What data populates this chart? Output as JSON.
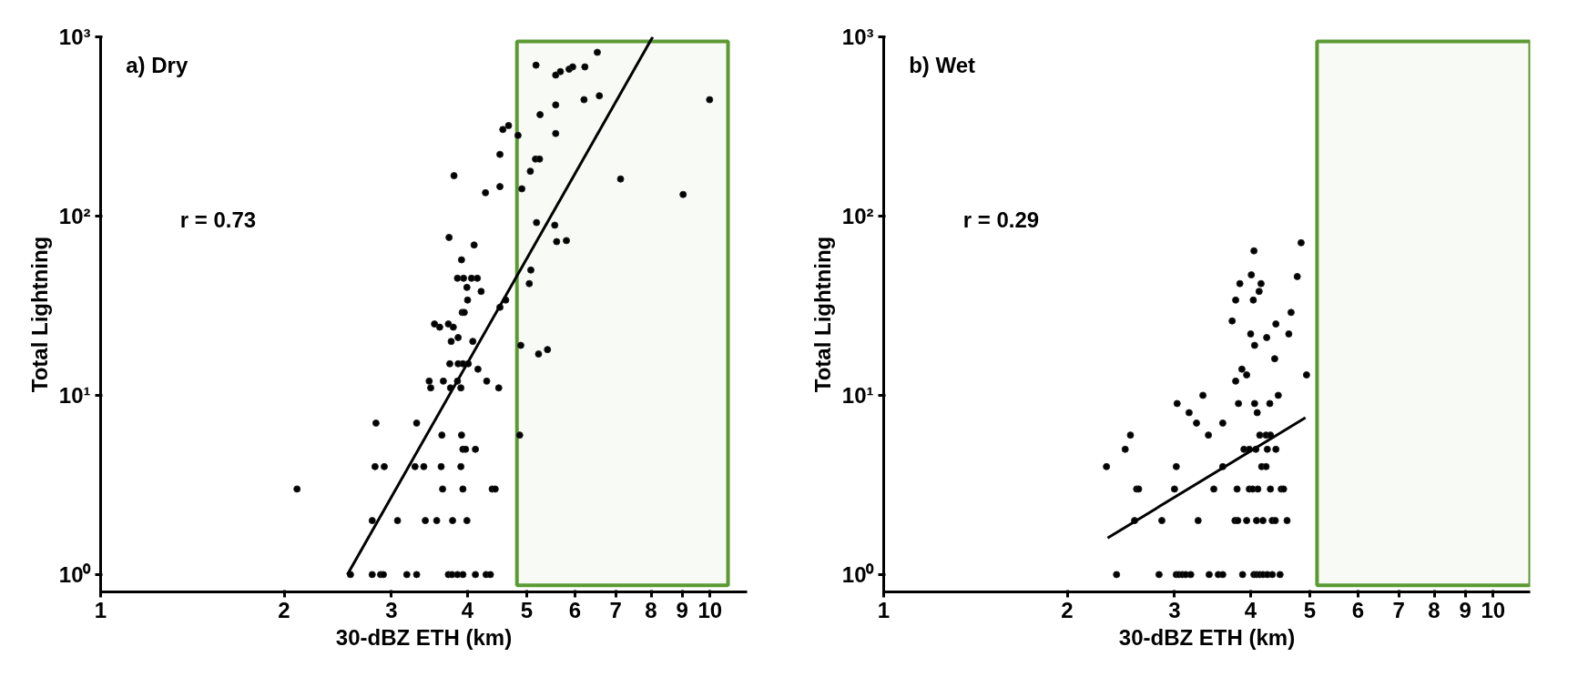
{
  "chart_data": [
    {
      "type": "scatter",
      "xlabel": "30-dBZ ETH (km)",
      "ylabel": "Total Lightning",
      "annotations": [
        "a) Dry",
        "r = 0.73"
      ],
      "marker": "circle",
      "log": "xy",
      "xlim": [
        1,
        11.5
      ],
      "ylim": [
        0.8,
        1000
      ],
      "xticks": [
        1,
        2,
        3,
        4,
        5,
        6,
        7,
        8,
        9,
        10
      ],
      "yticks": [
        {
          "value": 1,
          "label": "10⁰"
        },
        {
          "value": 10,
          "label": "10¹"
        },
        {
          "value": 100,
          "label": "10²"
        },
        {
          "value": 1000,
          "label": "10³"
        }
      ],
      "bands": [
        {
          "axis": "x",
          "from": 4.82,
          "to": 10.7,
          "label": null,
          "color": "#5b9a32"
        }
      ],
      "series": [
        {
          "type": "scatter",
          "color": "#000000",
          "x": [
            2.57,
            2.79,
            2.88,
            2.91,
            3.18,
            3.3,
            3.72,
            3.77,
            3.85,
            3.93,
            4.12,
            4.29,
            4.36,
            2.79,
            3.07,
            3.41,
            3.56,
            3.78,
            3.99,
            2.1,
            3.64,
            3.93,
            4.39,
            4.44,
            2.82,
            2.92,
            3.28,
            3.39,
            3.62,
            3.9,
            3.93,
            3.97,
            4.12,
            3.63,
            3.91,
            4.87,
            2.83,
            3.3,
            3.46,
            3.65,
            3.85,
            4.3,
            3.48,
            3.75,
            3.9,
            4.5,
            3.74,
            3.86,
            3.93,
            4.01,
            4.16,
            4.89,
            5.23,
            5.41,
            3.76,
            3.86,
            4.08,
            3.53,
            3.6,
            3.72,
            3.79,
            3.92,
            3.95,
            4.0,
            4.21,
            3.99,
            3.85,
            3.94,
            4.06,
            4.15,
            3.91,
            4.1,
            3.73,
            3.8,
            4.28,
            4.52,
            4.52,
            4.57,
            4.67,
            4.84,
            4.91,
            4.62,
            4.52,
            5.08,
            5.05,
            5.19,
            5.56,
            5.6,
            5.81,
            5.07,
            5.17,
            5.25,
            5.26,
            5.58,
            5.58,
            6.21,
            6.58,
            7.13,
            9.03,
            9.98,
            5.18,
            5.58,
            5.68,
            5.87,
            5.95,
            6.23,
            6.53
          ],
          "values": [
            1,
            1,
            1,
            1,
            1,
            1,
            1,
            1,
            1,
            1,
            1,
            1,
            1,
            2,
            2,
            2,
            2,
            2,
            2,
            3,
            3,
            3,
            3,
            3,
            4,
            4,
            4,
            4,
            4,
            4,
            5,
            5,
            5,
            6,
            6,
            6,
            7,
            7,
            12,
            12,
            12,
            12,
            11,
            11,
            11,
            11,
            15,
            15,
            15,
            15,
            14,
            19,
            17,
            18,
            20,
            21,
            20,
            25,
            24,
            25,
            24,
            29,
            29,
            34,
            38,
            40,
            45,
            45,
            45,
            45,
            57,
            69,
            76,
            168,
            135,
            146,
            221,
            304,
            320,
            282,
            142,
            34,
            31,
            50,
            42,
            92,
            89,
            72,
            73,
            178,
            208,
            208,
            368,
            289,
            417,
            446,
            469,
            161,
            132,
            446,
            695,
            612,
            640,
            660,
            680,
            680,
            820
          ]
        },
        {
          "type": "line",
          "color": "#000000",
          "marker": "none",
          "x": [
            2.54,
            8.05
          ],
          "values": [
            1,
            1000
          ]
        }
      ]
    },
    {
      "type": "scatter",
      "xlabel": "30-dBZ ETH (km)",
      "ylabel": "Total Lightning",
      "annotations": [
        "b) Wet",
        "r = 0.29"
      ],
      "marker": "circle",
      "log": "xy",
      "xlim": [
        1,
        11.5
      ],
      "ylim": [
        0.8,
        1000
      ],
      "xticks": [
        1,
        2,
        3,
        4,
        5,
        6,
        7,
        8,
        9,
        10
      ],
      "yticks": [
        {
          "value": 1,
          "label": "10⁰"
        },
        {
          "value": 10,
          "label": "10¹"
        },
        {
          "value": 100,
          "label": "10²"
        },
        {
          "value": 1000,
          "label": "10³"
        }
      ],
      "bands": [
        {
          "axis": "x",
          "from": 5.14,
          "to": 11.5,
          "label": null,
          "color": "#5b9a32"
        }
      ],
      "series": [
        {
          "type": "scatter",
          "color": "#000000",
          "x": [
            2.41,
            2.83,
            3.02,
            3.05,
            3.09,
            3.13,
            3.19,
            3.42,
            3.54,
            3.6,
            3.88,
            4.05,
            4.09,
            4.14,
            4.19,
            4.26,
            4.34,
            4.47,
            2.58,
            2.86,
            3.28,
            3.77,
            3.81,
            3.94,
            4.09,
            4.19,
            4.34,
            4.39,
            4.59,
            2.6,
            2.62,
            3.0,
            3.48,
            3.8,
            3.98,
            4.03,
            4.11,
            4.31,
            4.49,
            4.53,
            2.32,
            3.02,
            3.6,
            4.17,
            4.24,
            2.49,
            3.9,
            3.98,
            4.08,
            4.26,
            4.4,
            2.54,
            3.41,
            4.14,
            4.24,
            4.31,
            3.26,
            3.6,
            3.17,
            4.1,
            3.03,
            3.82,
            4.06,
            4.3,
            3.34,
            4.44,
            3.78,
            3.94,
            4.94,
            3.87,
            4.38,
            4.06,
            4.25,
            4.0,
            4.62,
            4.4,
            3.73,
            4.66,
            3.78,
            4.04,
            4.13,
            3.84,
            4.16,
            4.01,
            4.77,
            4.05,
            4.84
          ],
          "values": [
            1,
            1,
            1,
            1,
            1,
            1,
            1,
            1,
            1,
            1,
            1,
            1,
            1,
            1,
            1,
            1,
            1,
            1,
            2,
            2,
            2,
            2,
            2,
            2,
            2,
            2,
            2,
            2,
            2,
            3,
            3,
            3,
            3,
            3,
            3,
            3,
            3,
            3,
            3,
            3,
            4,
            4,
            4,
            4,
            4,
            5,
            5,
            5,
            5,
            5,
            5,
            6,
            6,
            6,
            6,
            6,
            7,
            7,
            8,
            8,
            9,
            9,
            9,
            9,
            10,
            10,
            12,
            13,
            13,
            14,
            16,
            19,
            21,
            22,
            22,
            25,
            26,
            29,
            34,
            34,
            38,
            42,
            42,
            47,
            46,
            64,
            71
          ]
        },
        {
          "type": "line",
          "color": "#000000",
          "marker": "none",
          "x": [
            2.33,
            4.92
          ],
          "values": [
            1.6,
            7.5
          ]
        }
      ]
    }
  ]
}
